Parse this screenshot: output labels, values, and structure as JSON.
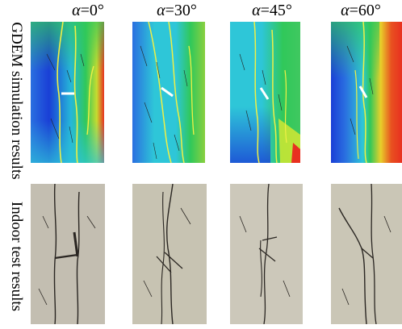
{
  "column_headers": [
    {
      "symbol": "α",
      "value": "=0°"
    },
    {
      "symbol": "α",
      "value": "=30°"
    },
    {
      "symbol": "α",
      "value": "=45°"
    },
    {
      "symbol": "α",
      "value": "=60°"
    }
  ],
  "row_labels": {
    "simulation": "GDEM simulation results",
    "indoor": "Indoor test results"
  },
  "colors": {
    "field_blue": "#1a3fd6",
    "field_cyan": "#2ec6d8",
    "field_green": "#30c85a",
    "field_yellow": "#f2ee2a",
    "field_red": "#e83020",
    "crack_line": "#f0f045",
    "flaw_mark": "#ffffff",
    "rock_gray": "#c9c5b8",
    "crack_dark": "#2a2622"
  }
}
